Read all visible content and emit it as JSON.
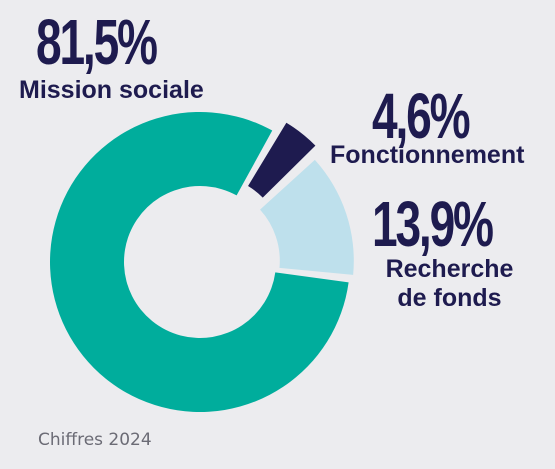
{
  "chart_data": {
    "type": "pie",
    "variant": "donut",
    "categories": [
      "Mission sociale",
      "Fonctionnement",
      "Recherche de fonds"
    ],
    "values": [
      81.5,
      4.6,
      13.9
    ],
    "value_labels": [
      "81,5%",
      "4,6%",
      "13,9%"
    ],
    "colors": [
      "#00ad9c",
      "#1e1b4f",
      "#bee0ec"
    ],
    "title": "",
    "legend": "none",
    "grid": false
  },
  "labels": {
    "mission": {
      "pct": "81,5%",
      "name": "Mission sociale"
    },
    "fonctionnement": {
      "pct": "4,6%",
      "name": "Fonctionnement"
    },
    "recherche": {
      "pct": "13,9%",
      "name_line1": "Recherche",
      "name_line2": "de fonds"
    }
  },
  "footnote": "Chiffres 2024",
  "colors": {
    "text": "#1e1b4f",
    "background": "#ececef",
    "footnote": "#6b6b75"
  }
}
